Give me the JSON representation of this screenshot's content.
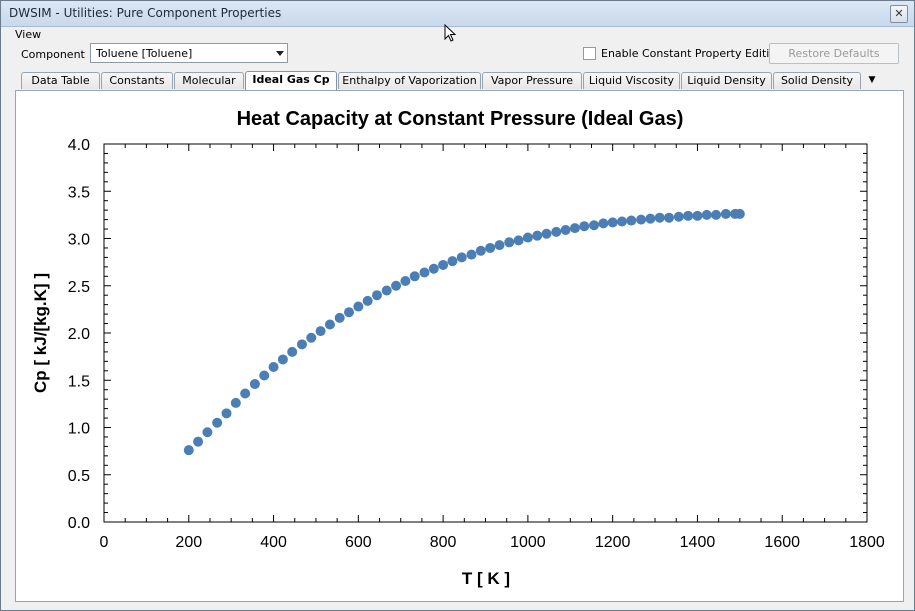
{
  "window": {
    "title": "DWSIM - Utilities: Pure Component Properties",
    "close_glyph": "✕"
  },
  "menu": {
    "view": "View"
  },
  "toolbar": {
    "component_label": "Component",
    "component_value": "Toluene [Toluene]",
    "enable_editing_label": "Enable Constant Property Editing",
    "enable_editing_checked": false,
    "restore_defaults": "Restore Defaults"
  },
  "tabs": [
    {
      "label": "Data Table",
      "active": false
    },
    {
      "label": "Constants",
      "active": false
    },
    {
      "label": "Molecular",
      "active": false
    },
    {
      "label": "Ideal Gas Cp",
      "active": true
    },
    {
      "label": "Enthalpy of Vaporization",
      "active": false
    },
    {
      "label": "Vapor Pressure",
      "active": false
    },
    {
      "label": "Liquid Viscosity",
      "active": false
    },
    {
      "label": "Liquid Density",
      "active": false
    },
    {
      "label": "Solid Density",
      "active": false
    }
  ],
  "tab_overflow_glyph": "▼",
  "chart_data": {
    "type": "scatter",
    "title": "Heat Capacity at Constant Pressure (Ideal Gas)",
    "xlabel": "T [ K ]",
    "ylabel": "Cp [ kJ/[kg.K] ]",
    "xlim": [
      0,
      1800
    ],
    "ylim": [
      0.0,
      4.0
    ],
    "xticks": [
      "0",
      "200",
      "400",
      "600",
      "800",
      "1000",
      "1200",
      "1400",
      "1600",
      "1800"
    ],
    "yticks": [
      "0.0",
      "0.5",
      "1.0",
      "1.5",
      "2.0",
      "2.5",
      "3.0",
      "3.5",
      "4.0"
    ],
    "grid": false,
    "legend": "none",
    "marker_color": "#4a7eb5",
    "points": [
      [
        200,
        0.76
      ],
      [
        222,
        0.85
      ],
      [
        244,
        0.95
      ],
      [
        267,
        1.05
      ],
      [
        289,
        1.15
      ],
      [
        311,
        1.26
      ],
      [
        333,
        1.36
      ],
      [
        356,
        1.46
      ],
      [
        378,
        1.55
      ],
      [
        400,
        1.64
      ],
      [
        422,
        1.72
      ],
      [
        444,
        1.8
      ],
      [
        467,
        1.88
      ],
      [
        489,
        1.95
      ],
      [
        511,
        2.02
      ],
      [
        533,
        2.09
      ],
      [
        556,
        2.16
      ],
      [
        578,
        2.22
      ],
      [
        600,
        2.28
      ],
      [
        622,
        2.34
      ],
      [
        644,
        2.4
      ],
      [
        667,
        2.45
      ],
      [
        689,
        2.5
      ],
      [
        711,
        2.55
      ],
      [
        733,
        2.6
      ],
      [
        756,
        2.64
      ],
      [
        778,
        2.68
      ],
      [
        800,
        2.72
      ],
      [
        822,
        2.76
      ],
      [
        844,
        2.8
      ],
      [
        867,
        2.83
      ],
      [
        889,
        2.87
      ],
      [
        911,
        2.9
      ],
      [
        933,
        2.93
      ],
      [
        956,
        2.96
      ],
      [
        978,
        2.98
      ],
      [
        1000,
        3.01
      ],
      [
        1022,
        3.03
      ],
      [
        1044,
        3.05
      ],
      [
        1067,
        3.07
      ],
      [
        1089,
        3.09
      ],
      [
        1111,
        3.11
      ],
      [
        1133,
        3.13
      ],
      [
        1156,
        3.14
      ],
      [
        1178,
        3.16
      ],
      [
        1200,
        3.17
      ],
      [
        1222,
        3.18
      ],
      [
        1244,
        3.19
      ],
      [
        1267,
        3.2
      ],
      [
        1289,
        3.21
      ],
      [
        1311,
        3.22
      ],
      [
        1333,
        3.22
      ],
      [
        1356,
        3.23
      ],
      [
        1378,
        3.24
      ],
      [
        1400,
        3.24
      ],
      [
        1422,
        3.25
      ],
      [
        1444,
        3.25
      ],
      [
        1467,
        3.26
      ],
      [
        1489,
        3.26
      ],
      [
        1500,
        3.26
      ]
    ]
  }
}
